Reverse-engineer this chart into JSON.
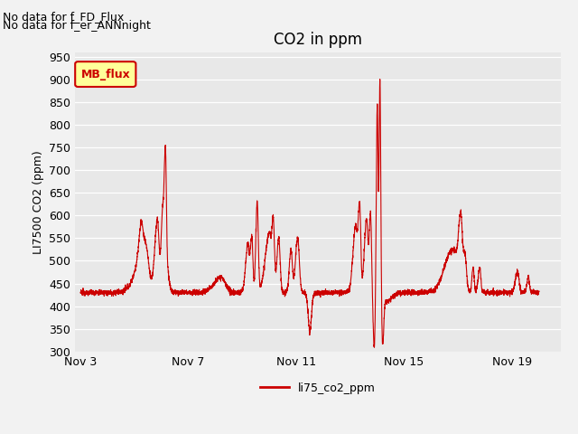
{
  "title": "CO2 in ppm",
  "ylabel": "LI7500 CO2 (ppm)",
  "ylim": [
    300,
    960
  ],
  "yticks": [
    300,
    350,
    400,
    450,
    500,
    550,
    600,
    650,
    700,
    750,
    800,
    850,
    900,
    950
  ],
  "xtick_labels": [
    "Nov 3",
    "Nov 7",
    "Nov 11",
    "Nov 15",
    "Nov 19"
  ],
  "xtick_positions": [
    3,
    7,
    11,
    15,
    19
  ],
  "xlim": [
    2.8,
    20.8
  ],
  "line_color": "#cc0000",
  "line_label": "li75_co2_ppm",
  "annotation_text1": "No data for f_FD_Flux",
  "annotation_text2": "No data for f_er_ANNnight",
  "legend_label": "MB_flux",
  "legend_bg": "#ffff99",
  "legend_border": "#cc0000",
  "fig_bg": "#f2f2f2",
  "plot_bg": "#e8e8e8",
  "title_fontsize": 12,
  "axis_fontsize": 9,
  "tick_fontsize": 9,
  "legend_fontsize": 9,
  "annotation_fontsize": 9
}
